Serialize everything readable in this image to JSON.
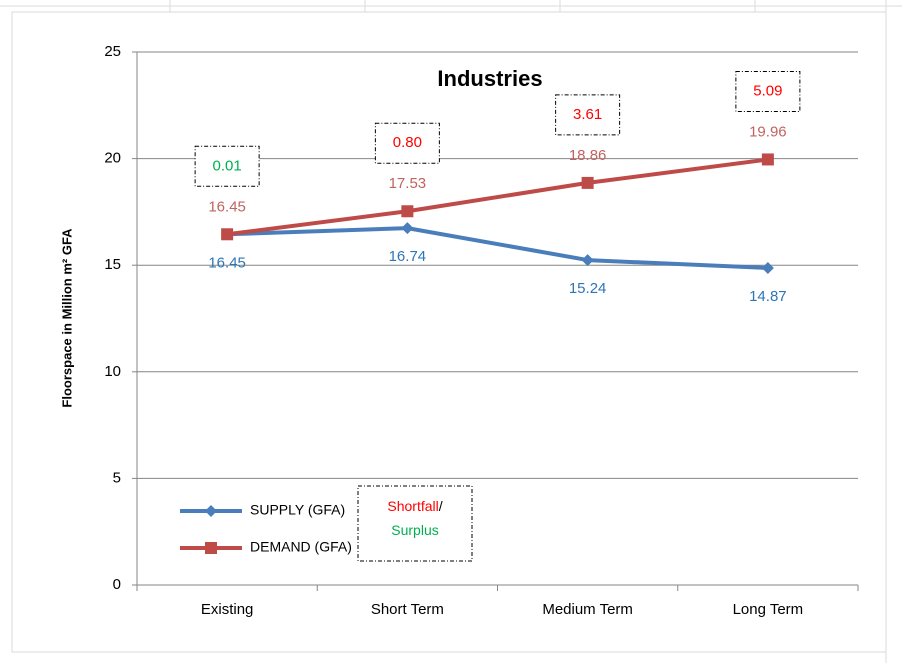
{
  "chart_data": {
    "type": "line",
    "title": "Industries",
    "y_label": "Floorspace in Million  m² GFA",
    "categories": [
      "Existing",
      "Short Term",
      "Medium Term",
      "Long Term"
    ],
    "series": [
      {
        "name": "SUPPLY (GFA)",
        "color": "#4a7ebb",
        "label_color": "#2e75b6",
        "marker": "diamond",
        "label_side": "below",
        "values": [
          16.45,
          16.74,
          15.24,
          14.87
        ]
      },
      {
        "name": "DEMAND (GFA)",
        "color": "#be4b48",
        "label_color": "#c0645f",
        "marker": "square",
        "label_side": "above",
        "values": [
          16.45,
          17.53,
          18.86,
          19.96
        ]
      }
    ],
    "gaps": {
      "values": [
        0.01,
        0.8,
        3.61,
        5.09
      ],
      "value_labels": [
        "0.01",
        "0.80",
        "3.61",
        "5.09"
      ],
      "colors": [
        "#00b050",
        "#ff0000",
        "#ff0000",
        "#ff0000"
      ]
    },
    "gap_legend": [
      {
        "text": "Shortfall",
        "color": "#ff0000"
      },
      {
        "text": "/",
        "color": "#000000"
      },
      {
        "text": "Surplus",
        "color": "#00b050"
      }
    ],
    "ylim": [
      0,
      25
    ],
    "yticks": [
      0,
      5,
      10,
      15,
      20,
      25
    ],
    "grid": true
  }
}
